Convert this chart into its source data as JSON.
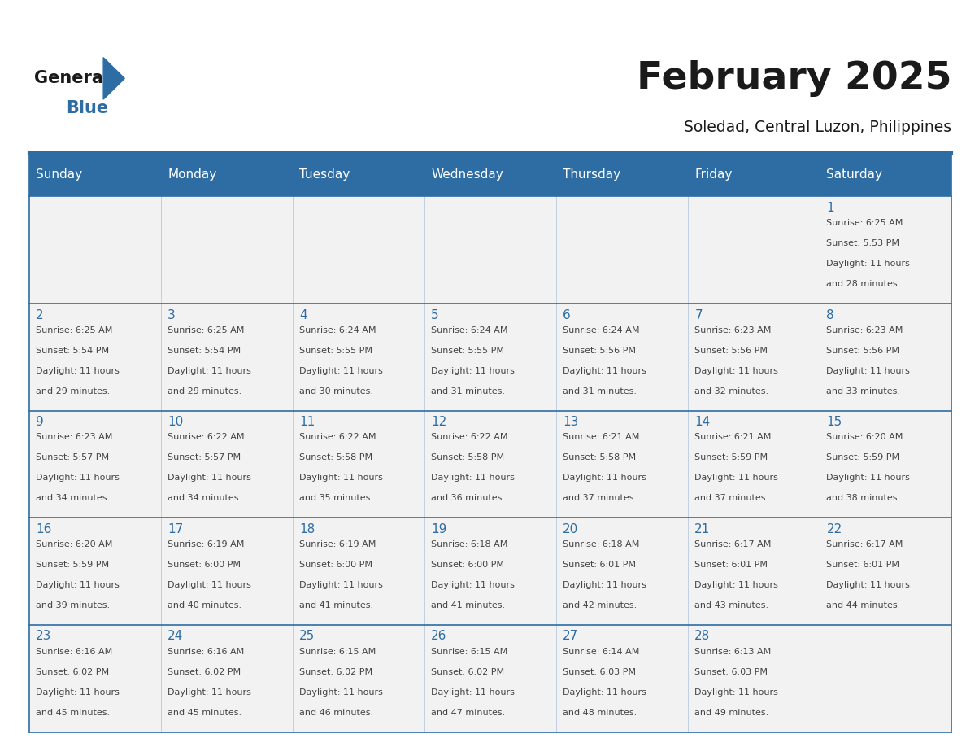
{
  "title": "February 2025",
  "subtitle": "Soledad, Central Luzon, Philippines",
  "header_bg": "#2E6DA4",
  "header_text_color": "#FFFFFF",
  "cell_bg": "#F2F2F2",
  "day_number_color": "#2E6DA4",
  "text_color": "#444444",
  "line_color": "#2E6DA4",
  "days_of_week": [
    "Sunday",
    "Monday",
    "Tuesday",
    "Wednesday",
    "Thursday",
    "Friday",
    "Saturday"
  ],
  "calendar_data": [
    [
      null,
      null,
      null,
      null,
      null,
      null,
      {
        "day": 1,
        "sunrise": "6:25 AM",
        "sunset": "5:53 PM",
        "daylight": "11 hours and 28 minutes"
      }
    ],
    [
      {
        "day": 2,
        "sunrise": "6:25 AM",
        "sunset": "5:54 PM",
        "daylight": "11 hours and 29 minutes"
      },
      {
        "day": 3,
        "sunrise": "6:25 AM",
        "sunset": "5:54 PM",
        "daylight": "11 hours and 29 minutes"
      },
      {
        "day": 4,
        "sunrise": "6:24 AM",
        "sunset": "5:55 PM",
        "daylight": "11 hours and 30 minutes"
      },
      {
        "day": 5,
        "sunrise": "6:24 AM",
        "sunset": "5:55 PM",
        "daylight": "11 hours and 31 minutes"
      },
      {
        "day": 6,
        "sunrise": "6:24 AM",
        "sunset": "5:56 PM",
        "daylight": "11 hours and 31 minutes"
      },
      {
        "day": 7,
        "sunrise": "6:23 AM",
        "sunset": "5:56 PM",
        "daylight": "11 hours and 32 minutes"
      },
      {
        "day": 8,
        "sunrise": "6:23 AM",
        "sunset": "5:56 PM",
        "daylight": "11 hours and 33 minutes"
      }
    ],
    [
      {
        "day": 9,
        "sunrise": "6:23 AM",
        "sunset": "5:57 PM",
        "daylight": "11 hours and 34 minutes"
      },
      {
        "day": 10,
        "sunrise": "6:22 AM",
        "sunset": "5:57 PM",
        "daylight": "11 hours and 34 minutes"
      },
      {
        "day": 11,
        "sunrise": "6:22 AM",
        "sunset": "5:58 PM",
        "daylight": "11 hours and 35 minutes"
      },
      {
        "day": 12,
        "sunrise": "6:22 AM",
        "sunset": "5:58 PM",
        "daylight": "11 hours and 36 minutes"
      },
      {
        "day": 13,
        "sunrise": "6:21 AM",
        "sunset": "5:58 PM",
        "daylight": "11 hours and 37 minutes"
      },
      {
        "day": 14,
        "sunrise": "6:21 AM",
        "sunset": "5:59 PM",
        "daylight": "11 hours and 37 minutes"
      },
      {
        "day": 15,
        "sunrise": "6:20 AM",
        "sunset": "5:59 PM",
        "daylight": "11 hours and 38 minutes"
      }
    ],
    [
      {
        "day": 16,
        "sunrise": "6:20 AM",
        "sunset": "5:59 PM",
        "daylight": "11 hours and 39 minutes"
      },
      {
        "day": 17,
        "sunrise": "6:19 AM",
        "sunset": "6:00 PM",
        "daylight": "11 hours and 40 minutes"
      },
      {
        "day": 18,
        "sunrise": "6:19 AM",
        "sunset": "6:00 PM",
        "daylight": "11 hours and 41 minutes"
      },
      {
        "day": 19,
        "sunrise": "6:18 AM",
        "sunset": "6:00 PM",
        "daylight": "11 hours and 41 minutes"
      },
      {
        "day": 20,
        "sunrise": "6:18 AM",
        "sunset": "6:01 PM",
        "daylight": "11 hours and 42 minutes"
      },
      {
        "day": 21,
        "sunrise": "6:17 AM",
        "sunset": "6:01 PM",
        "daylight": "11 hours and 43 minutes"
      },
      {
        "day": 22,
        "sunrise": "6:17 AM",
        "sunset": "6:01 PM",
        "daylight": "11 hours and 44 minutes"
      }
    ],
    [
      {
        "day": 23,
        "sunrise": "6:16 AM",
        "sunset": "6:02 PM",
        "daylight": "11 hours and 45 minutes"
      },
      {
        "day": 24,
        "sunrise": "6:16 AM",
        "sunset": "6:02 PM",
        "daylight": "11 hours and 45 minutes"
      },
      {
        "day": 25,
        "sunrise": "6:15 AM",
        "sunset": "6:02 PM",
        "daylight": "11 hours and 46 minutes"
      },
      {
        "day": 26,
        "sunrise": "6:15 AM",
        "sunset": "6:02 PM",
        "daylight": "11 hours and 47 minutes"
      },
      {
        "day": 27,
        "sunrise": "6:14 AM",
        "sunset": "6:03 PM",
        "daylight": "11 hours and 48 minutes"
      },
      {
        "day": 28,
        "sunrise": "6:13 AM",
        "sunset": "6:03 PM",
        "daylight": "11 hours and 49 minutes"
      },
      null
    ]
  ]
}
